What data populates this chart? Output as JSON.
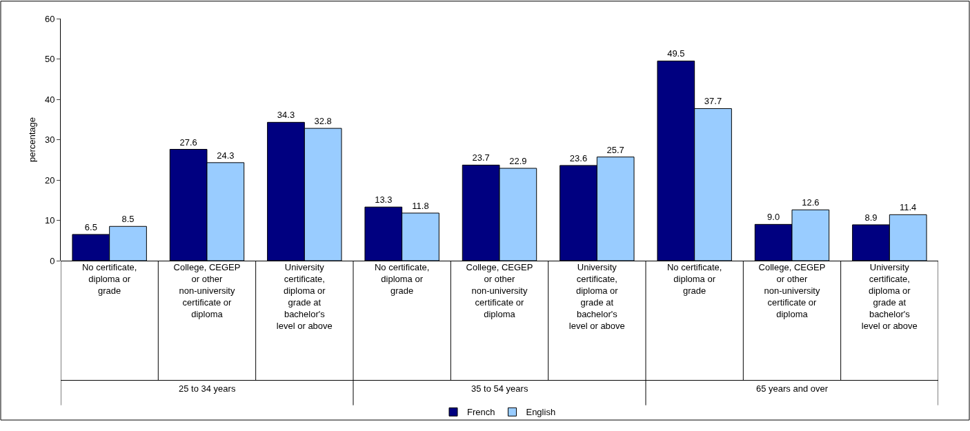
{
  "chart_data": {
    "type": "bar",
    "ylabel": "percentage",
    "categories": [
      "No certificate, diploma or grade",
      "College, CEGEP or other non-university certificate or diploma",
      "University certificate, diploma or grade at bachelor's level or above",
      "No certificate, diploma or grade",
      "College, CEGEP or other non-university certificate or diploma",
      "University certificate, diploma or grade at bachelor's level or above",
      "No certificate, diploma or grade",
      "College, CEGEP or other non-university certificate or diploma",
      "University certificate, diploma or grade at bachelor's level or above"
    ],
    "series": [
      {
        "name": "French",
        "color": "#000080",
        "values": [
          6.5,
          27.6,
          34.3,
          13.3,
          23.7,
          23.6,
          49.5,
          9.0,
          8.9
        ],
        "value_labels": [
          "6.5",
          "27.6",
          "34.3",
          "13.3",
          "23.7",
          "23.6",
          "49.5",
          "9.0",
          "8.9"
        ]
      },
      {
        "name": "English",
        "color": "#99ccff",
        "values": [
          8.5,
          24.3,
          32.8,
          11.8,
          22.9,
          25.7,
          37.7,
          12.6,
          11.4
        ],
        "value_labels": [
          "8.5",
          "24.3",
          "32.8",
          "11.8",
          "22.9",
          "25.7",
          "37.7",
          "12.6",
          "11.4"
        ]
      }
    ],
    "annotations": [
      "25 to 34 years",
      "35 to 54 years",
      "65 years and over"
    ],
    "ylim": [
      0,
      60
    ],
    "yticks": [
      0,
      10,
      20,
      30,
      40,
      50,
      60
    ],
    "grid": false,
    "legend": "bottom"
  }
}
